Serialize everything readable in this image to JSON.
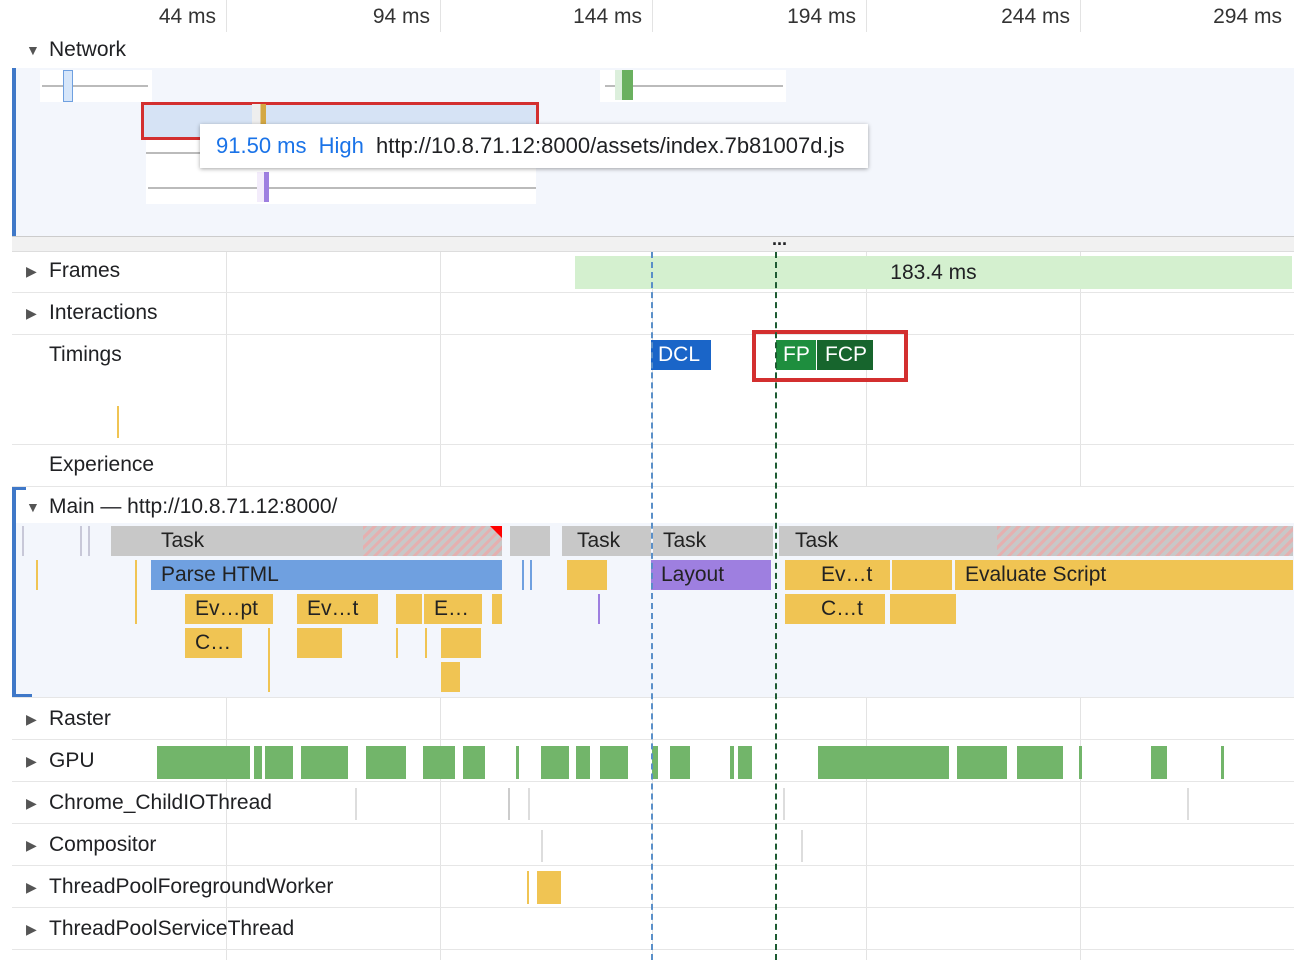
{
  "ruler": {
    "ticks": [
      "44 ms",
      "94 ms",
      "144 ms",
      "194 ms",
      "244 ms",
      "294 ms"
    ]
  },
  "network": {
    "label": "Network",
    "tooltip": {
      "duration": "91.50 ms",
      "priority": "High",
      "url": "http://10.8.71.12:8000/assets/index.7b81007d.js"
    }
  },
  "divider": {
    "handle": "..."
  },
  "tracks": {
    "frames": {
      "label": "Frames",
      "frame_duration": "183.4 ms"
    },
    "interactions": {
      "label": "Interactions"
    },
    "timings": {
      "label": "Timings",
      "markers": [
        {
          "label": "DCL",
          "color": "#1a65c8"
        },
        {
          "label": "FP",
          "color": "#1e8e3e"
        },
        {
          "label": "FCP",
          "color": "#17652d"
        }
      ]
    },
    "experience": {
      "label": "Experience"
    },
    "main": {
      "label": "Main — http://10.8.71.12:8000/",
      "tasks": [
        "Task",
        "Task",
        "Task",
        "Task"
      ],
      "events": {
        "parse_html": "Parse HTML",
        "layout": "Layout",
        "evaluate_script": "Evaluate Script",
        "e1": "Ev…pt",
        "e2": "Ev…t",
        "e3": "E…",
        "e4": "Ev…t",
        "c1": "C…",
        "c2": "C…t"
      }
    },
    "raster": {
      "label": "Raster"
    },
    "gpu": {
      "label": "GPU"
    },
    "childio": {
      "label": "Chrome_ChildIOThread"
    },
    "compositor": {
      "label": "Compositor"
    },
    "tpfw": {
      "label": "ThreadPoolForegroundWorker"
    },
    "tpst": {
      "label": "ThreadPoolServiceThread"
    }
  },
  "colors": {
    "highlight": "#d32f2f",
    "accent": "#1a73e8"
  }
}
